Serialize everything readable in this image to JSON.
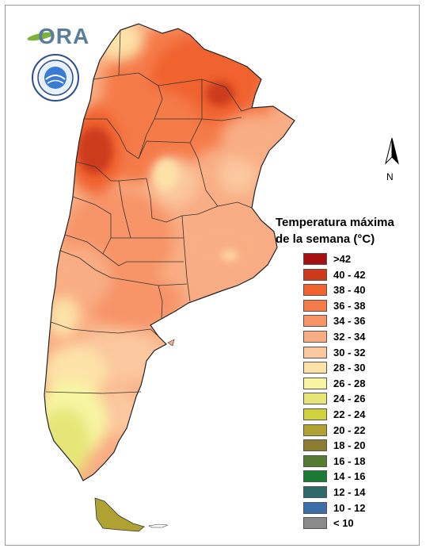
{
  "logo": {
    "text": "ORA",
    "seal_name": "servicio-meteorologico-seal"
  },
  "north": {
    "label": "N"
  },
  "legend": {
    "title_line1": "Temperatura máxima",
    "title_line2": "de la semana (°C)",
    "items": [
      {
        "label": ">42",
        "color": "#a50f0f"
      },
      {
        "label": "40 - 42",
        "color": "#cc3a1a"
      },
      {
        "label": "38 - 40",
        "color": "#f0622e"
      },
      {
        "label": "36 - 38",
        "color": "#f57c4a"
      },
      {
        "label": "34 - 36",
        "color": "#f79468"
      },
      {
        "label": "32 - 34",
        "color": "#f9ad84"
      },
      {
        "label": "30 - 32",
        "color": "#fbc79e"
      },
      {
        "label": "28 - 30",
        "color": "#fde2a8"
      },
      {
        "label": "26 - 28",
        "color": "#f8f5a2"
      },
      {
        "label": "24 - 26",
        "color": "#e6e678"
      },
      {
        "label": "22 - 24",
        "color": "#cfd23c"
      },
      {
        "label": "20 - 22",
        "color": "#b0a232"
      },
      {
        "label": "18 - 20",
        "color": "#8c7c32"
      },
      {
        "label": "16 - 18",
        "color": "#557a32"
      },
      {
        "label": "14 - 16",
        "color": "#1a7a32"
      },
      {
        "label": "12 - 14",
        "color": "#2e6a6a"
      },
      {
        "label": "10 - 12",
        "color": "#3c6ea8"
      },
      {
        "label": "< 10",
        "color": "#8a8a8a"
      }
    ]
  }
}
